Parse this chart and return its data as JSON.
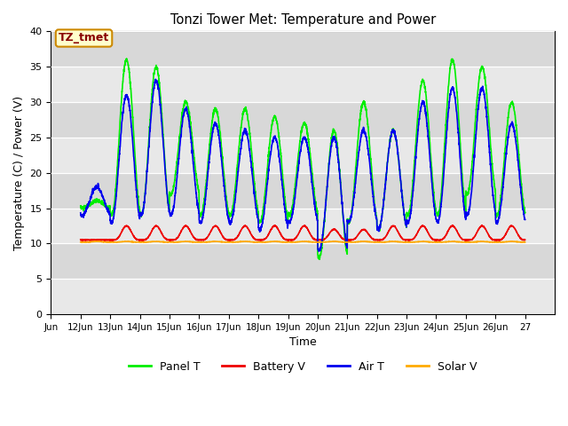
{
  "title": "Tonzi Tower Met: Temperature and Power",
  "xlabel": "Time",
  "ylabel": "Temperature (C) / Power (V)",
  "ylim": [
    0,
    40
  ],
  "yticks": [
    0,
    5,
    10,
    15,
    20,
    25,
    30,
    35,
    40
  ],
  "bg_color": "#d8d8d8",
  "annotation_text": "TZ_tmet",
  "annotation_bg": "#ffffcc",
  "annotation_border": "#cc8800",
  "annotation_text_color": "#880000",
  "series": {
    "panel_t": {
      "color": "#00ee00",
      "label": "Panel T",
      "lw": 1.2
    },
    "battery_v": {
      "color": "#ee0000",
      "label": "Battery V",
      "lw": 1.2
    },
    "air_t": {
      "color": "#0000ee",
      "label": "Air T",
      "lw": 1.2
    },
    "solar_v": {
      "color": "#ffaa00",
      "label": "Solar V",
      "lw": 1.2
    }
  },
  "xtick_labels": [
    "Jun",
    "12Jun",
    "13Jun",
    "14Jun",
    "15Jun",
    "16Jun",
    "17Jun",
    "18Jun",
    "19Jun",
    "20Jun",
    "21Jun",
    "22Jun",
    "23Jun",
    "24Jun",
    "25Jun",
    "26Jun",
    "27"
  ],
  "xtick_positions": [
    0,
    1,
    2,
    3,
    4,
    5,
    6,
    7,
    8,
    9,
    10,
    11,
    12,
    13,
    14,
    15,
    16
  ],
  "n_points": 3000
}
